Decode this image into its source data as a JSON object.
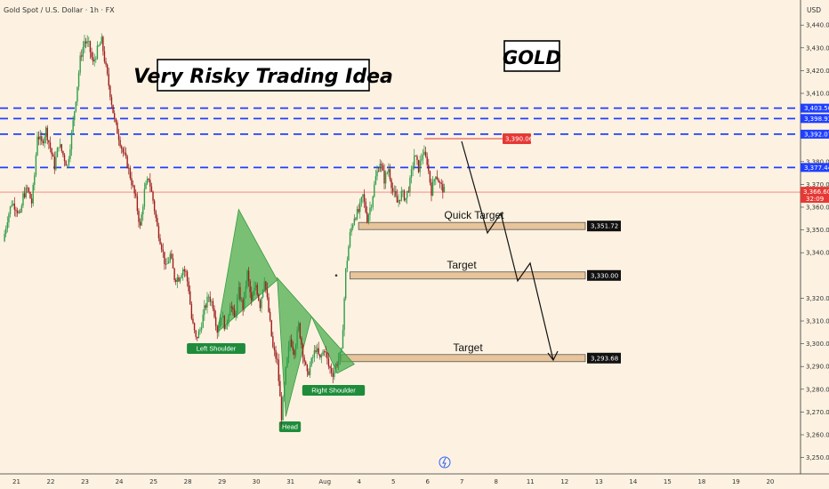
{
  "header": {
    "title": "Gold Spot / U.S. Dollar · 1h · FX"
  },
  "currency": "USD",
  "chart_data": {
    "type": "candlestick",
    "title": "GOLD",
    "subtitle": "Very Risky Trading Idea",
    "ylim": [
      3245,
      3445
    ],
    "y_ticks": [
      {
        "v": 3440,
        "label": "3,440.00"
      },
      {
        "v": 3430,
        "label": "3,430.00"
      },
      {
        "v": 3420,
        "label": "3,420.00"
      },
      {
        "v": 3410,
        "label": "3,410.00"
      },
      {
        "v": 3380,
        "label": "3,380.00"
      },
      {
        "v": 3370,
        "label": "3,370.00"
      },
      {
        "v": 3360,
        "label": "3,360.00"
      },
      {
        "v": 3350,
        "label": "3,350.00"
      },
      {
        "v": 3340,
        "label": "3,340.00"
      },
      {
        "v": 3320,
        "label": "3,320.00"
      },
      {
        "v": 3310,
        "label": "3,310.00"
      },
      {
        "v": 3300,
        "label": "3,300.00"
      },
      {
        "v": 3290,
        "label": "3,290.00"
      },
      {
        "v": 3280,
        "label": "3,280.00"
      },
      {
        "v": 3270,
        "label": "3,270.00"
      },
      {
        "v": 3260,
        "label": "3,260.00"
      },
      {
        "v": 3250,
        "label": "3,250.00"
      }
    ],
    "x_ticks": [
      {
        "label": "21",
        "i": 0
      },
      {
        "label": "22",
        "i": 24
      },
      {
        "label": "23",
        "i": 48
      },
      {
        "label": "24",
        "i": 72
      },
      {
        "label": "25",
        "i": 96
      },
      {
        "label": "28",
        "i": 120
      },
      {
        "label": "29",
        "i": 144
      },
      {
        "label": "30",
        "i": 168
      },
      {
        "label": "31",
        "i": 192
      },
      {
        "label": "Aug",
        "i": 216
      },
      {
        "label": "4",
        "i": 240
      },
      {
        "label": "5",
        "i": 264
      },
      {
        "label": "6",
        "i": 288
      },
      {
        "label": "7",
        "i": 312
      },
      {
        "label": "8",
        "i": 336
      },
      {
        "label": "11",
        "i": 360
      },
      {
        "label": "12",
        "i": 384
      },
      {
        "label": "13",
        "i": 408
      },
      {
        "label": "14",
        "i": 432
      },
      {
        "label": "15",
        "i": 456
      },
      {
        "label": "18",
        "i": 480
      },
      {
        "label": "19",
        "i": 504
      },
      {
        "label": "20",
        "i": 528
      }
    ],
    "close_path": [
      [
        0,
        3345
      ],
      [
        3,
        3355
      ],
      [
        6,
        3362
      ],
      [
        9,
        3360
      ],
      [
        12,
        3356
      ],
      [
        14,
        3365
      ],
      [
        17,
        3368
      ],
      [
        20,
        3362
      ],
      [
        22,
        3374
      ],
      [
        24,
        3392
      ],
      [
        27,
        3388
      ],
      [
        30,
        3394
      ],
      [
        33,
        3386
      ],
      [
        36,
        3378
      ],
      [
        39,
        3388
      ],
      [
        42,
        3383
      ],
      [
        45,
        3378
      ],
      [
        48,
        3392
      ],
      [
        51,
        3408
      ],
      [
        54,
        3425
      ],
      [
        57,
        3433
      ],
      [
        60,
        3431
      ],
      [
        63,
        3423
      ],
      [
        66,
        3429
      ],
      [
        69,
        3433
      ],
      [
        72,
        3421
      ],
      [
        75,
        3410
      ],
      [
        78,
        3398
      ],
      [
        81,
        3391
      ],
      [
        84,
        3384
      ],
      [
        87,
        3379
      ],
      [
        90,
        3371
      ],
      [
        93,
        3363
      ],
      [
        96,
        3351
      ],
      [
        99,
        3367
      ],
      [
        102,
        3373
      ],
      [
        105,
        3363
      ],
      [
        108,
        3351
      ],
      [
        111,
        3343
      ],
      [
        114,
        3333
      ],
      [
        117,
        3339
      ],
      [
        120,
        3329
      ],
      [
        123,
        3329
      ],
      [
        126,
        3333
      ],
      [
        128,
        3331
      ],
      [
        130,
        3324
      ],
      [
        132,
        3311
      ],
      [
        135,
        3302
      ],
      [
        138,
        3306
      ],
      [
        141,
        3315
      ],
      [
        144,
        3321
      ],
      [
        147,
        3317
      ],
      [
        150,
        3306
      ],
      [
        153,
        3313
      ],
      [
        156,
        3306
      ],
      [
        159,
        3318
      ],
      [
        162,
        3311
      ],
      [
        165,
        3323
      ],
      [
        168,
        3316
      ],
      [
        171,
        3331
      ],
      [
        174,
        3318
      ],
      [
        177,
        3326
      ],
      [
        180,
        3317
      ],
      [
        183,
        3329
      ],
      [
        186,
        3314
      ],
      [
        189,
        3298
      ],
      [
        192,
        3292
      ],
      [
        195,
        3268
      ],
      [
        198,
        3288
      ],
      [
        201,
        3302
      ],
      [
        204,
        3297
      ],
      [
        207,
        3308
      ],
      [
        210,
        3296
      ],
      [
        213,
        3286
      ],
      [
        216,
        3292
      ],
      [
        219,
        3298
      ],
      [
        222,
        3293
      ],
      [
        225,
        3298
      ],
      [
        228,
        3290
      ],
      [
        231,
        3287
      ],
      [
        234,
        3292
      ],
      [
        237,
        3296
      ],
      [
        240,
        3332
      ],
      [
        243,
        3348
      ],
      [
        246,
        3356
      ],
      [
        249,
        3358
      ],
      [
        252,
        3365
      ],
      [
        255,
        3355
      ],
      [
        258,
        3362
      ],
      [
        261,
        3373
      ],
      [
        264,
        3380
      ],
      [
        267,
        3372
      ],
      [
        270,
        3377
      ],
      [
        273,
        3367
      ],
      [
        276,
        3362
      ],
      [
        279,
        3366
      ],
      [
        282,
        3364
      ],
      [
        285,
        3371
      ],
      [
        288,
        3383
      ],
      [
        291,
        3377
      ],
      [
        294,
        3384
      ],
      [
        297,
        3380
      ],
      [
        300,
        3367
      ],
      [
        303,
        3375
      ],
      [
        306,
        3370
      ],
      [
        309,
        3367
      ]
    ],
    "levels": [
      {
        "v": 3403.5,
        "label": "3,403.50"
      },
      {
        "v": 3398.93,
        "label": "3,398.93"
      },
      {
        "v": 3392.07,
        "label": "3,392.07"
      },
      {
        "v": 3377.44,
        "label": "3,377.44"
      }
    ],
    "price": {
      "v": 3366.6,
      "label": "3,366.60",
      "countdown": "32:09"
    },
    "high": {
      "v": 3390.06,
      "label": "3,390.06"
    },
    "zones": [
      {
        "v": 3351.72,
        "label": "3,351.72",
        "text": "Quick Target",
        "from": 249
      },
      {
        "v": 3330.0,
        "label": "3,330.00",
        "text": "Target",
        "from": 243
      },
      {
        "v": 3293.68,
        "label": "3,293.68",
        "text": "Target",
        "from": 237
      }
    ],
    "patterns": {
      "left_shoulder": "Left Shoulder",
      "head": "Head",
      "right_shoulder": "Right Shoulder"
    }
  }
}
